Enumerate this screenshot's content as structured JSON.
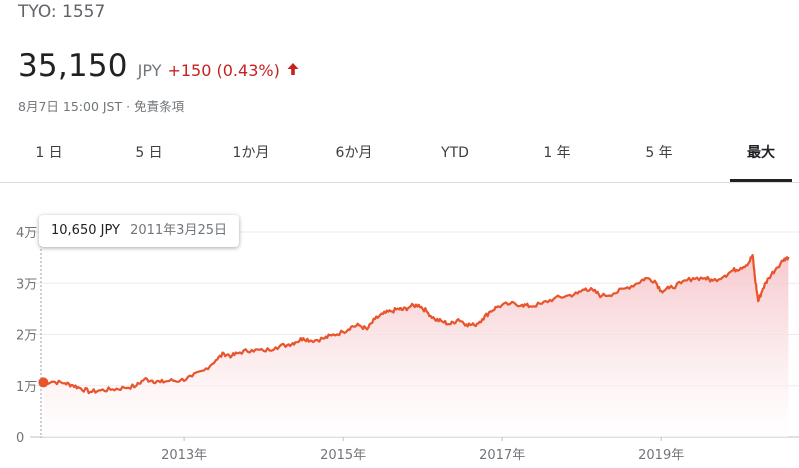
{
  "header": {
    "ticker": "TYO: 1557",
    "price": "35,150",
    "currency": "JPY",
    "change": "+150 (0.43%)",
    "timestamp": "8月7日 15:00 JST",
    "separator": "·",
    "disclaimer": "免責条項"
  },
  "tabs": [
    {
      "label": "1 日"
    },
    {
      "label": "5 日"
    },
    {
      "label": "1か月"
    },
    {
      "label": "6か月"
    },
    {
      "label": "YTD"
    },
    {
      "label": "1 年"
    },
    {
      "label": "5 年"
    },
    {
      "label": "最大",
      "selected": true
    }
  ],
  "tooltip": {
    "value": "10,650 JPY",
    "date": "2011年3月25日"
  },
  "colors": {
    "line": "#e8542b",
    "fill_top": "#f6c6cb",
    "change": "#c5221f"
  },
  "chart_data": {
    "type": "area",
    "ylim": [
      0,
      40000
    ],
    "yticks": [
      {
        "v": 0,
        "label": "0"
      },
      {
        "v": 10000,
        "label": "1万"
      },
      {
        "v": 20000,
        "label": "2万"
      },
      {
        "v": 30000,
        "label": "3万"
      },
      {
        "v": 40000,
        "label": "4万"
      }
    ],
    "xlim": [
      2011.2,
      2020.62
    ],
    "xticks": [
      {
        "v": 2013,
        "label": "2013年"
      },
      {
        "v": 2015,
        "label": "2015年"
      },
      {
        "v": 2017,
        "label": "2017年"
      },
      {
        "v": 2019,
        "label": "2019年"
      }
    ],
    "series": [
      {
        "points": [
          [
            2011.23,
            10650
          ],
          [
            2011.35,
            10800
          ],
          [
            2011.5,
            10500
          ],
          [
            2011.6,
            10100
          ],
          [
            2011.7,
            9500
          ],
          [
            2011.82,
            8800
          ],
          [
            2011.95,
            9100
          ],
          [
            2012.1,
            9300
          ],
          [
            2012.25,
            9600
          ],
          [
            2012.4,
            10000
          ],
          [
            2012.5,
            11300
          ],
          [
            2012.6,
            11000
          ],
          [
            2012.7,
            10700
          ],
          [
            2012.82,
            11000
          ],
          [
            2012.95,
            11000
          ],
          [
            2013.1,
            11800
          ],
          [
            2013.25,
            13000
          ],
          [
            2013.4,
            15000
          ],
          [
            2013.5,
            16300
          ],
          [
            2013.6,
            15800
          ],
          [
            2013.7,
            16500
          ],
          [
            2013.85,
            17000
          ],
          [
            2014.0,
            16800
          ],
          [
            2014.15,
            17500
          ],
          [
            2014.3,
            18000
          ],
          [
            2014.4,
            18500
          ],
          [
            2014.5,
            19300
          ],
          [
            2014.6,
            18800
          ],
          [
            2014.75,
            19200
          ],
          [
            2014.85,
            19800
          ],
          [
            2015.0,
            20500
          ],
          [
            2015.1,
            21500
          ],
          [
            2015.2,
            21800
          ],
          [
            2015.3,
            21000
          ],
          [
            2015.4,
            23000
          ],
          [
            2015.5,
            24000
          ],
          [
            2015.6,
            24500
          ],
          [
            2015.7,
            25000
          ],
          [
            2015.75,
            24800
          ],
          [
            2015.85,
            25500
          ],
          [
            2015.95,
            25800
          ],
          [
            2016.05,
            24500
          ],
          [
            2016.15,
            23000
          ],
          [
            2016.25,
            22500
          ],
          [
            2016.35,
            22000
          ],
          [
            2016.45,
            23000
          ],
          [
            2016.55,
            22000
          ],
          [
            2016.65,
            21800
          ],
          [
            2016.75,
            23000
          ],
          [
            2016.85,
            24500
          ],
          [
            2016.95,
            25500
          ],
          [
            2017.1,
            26000
          ],
          [
            2017.25,
            25800
          ],
          [
            2017.35,
            25500
          ],
          [
            2017.5,
            26000
          ],
          [
            2017.65,
            27000
          ],
          [
            2017.8,
            27500
          ],
          [
            2017.95,
            28000
          ],
          [
            2018.05,
            29000
          ],
          [
            2018.15,
            28500
          ],
          [
            2018.25,
            27500
          ],
          [
            2018.4,
            28000
          ],
          [
            2018.55,
            29000
          ],
          [
            2018.7,
            30000
          ],
          [
            2018.8,
            31000
          ],
          [
            2018.92,
            30500
          ],
          [
            2019.0,
            28500
          ],
          [
            2019.1,
            29000
          ],
          [
            2019.25,
            30000
          ],
          [
            2019.4,
            31000
          ],
          [
            2019.55,
            31000
          ],
          [
            2019.65,
            30500
          ],
          [
            2019.8,
            31500
          ],
          [
            2019.9,
            32500
          ],
          [
            2020.0,
            33000
          ],
          [
            2020.1,
            34000
          ],
          [
            2020.15,
            35500
          ],
          [
            2020.18,
            31000
          ],
          [
            2020.22,
            26500
          ],
          [
            2020.28,
            29000
          ],
          [
            2020.35,
            31000
          ],
          [
            2020.45,
            33000
          ],
          [
            2020.55,
            34800
          ],
          [
            2020.6,
            35150
          ]
        ]
      }
    ]
  }
}
